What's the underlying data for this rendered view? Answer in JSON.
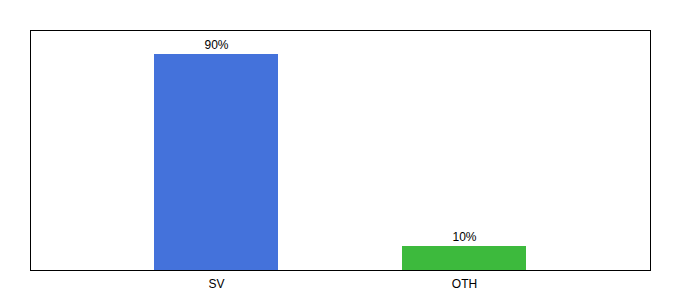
{
  "chart_data": {
    "type": "bar",
    "categories": [
      "SV",
      "OTH"
    ],
    "values": [
      90,
      10
    ],
    "value_labels": [
      "90%",
      "10%"
    ],
    "colors": [
      "#4472db",
      "#3dba3d"
    ],
    "ylim": [
      0,
      100
    ],
    "yticks": [],
    "data_labels": true,
    "tick_labels": "x"
  }
}
